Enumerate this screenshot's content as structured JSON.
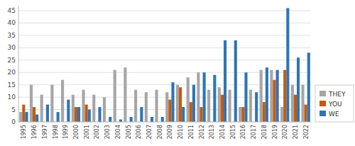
{
  "chart_data": {
    "type": "bar",
    "categories": [
      "1995",
      "1996",
      "1997",
      "1998",
      "1999",
      "2000",
      "2001",
      "2002",
      "2003",
      "2004",
      "2005",
      "2006",
      "2007",
      "2008",
      "2009",
      "2010",
      "2011",
      "2012",
      "2013",
      "2014",
      "2015",
      "2016",
      "2017",
      "2018",
      "2019",
      "2020",
      "2021",
      "2022"
    ],
    "series": [
      {
        "name": "THEY",
        "color": "#a6a6a6",
        "values": [
          4,
          15,
          11,
          15,
          17,
          11,
          13,
          11,
          10,
          21,
          22,
          13,
          12,
          13,
          12,
          15,
          18,
          20,
          13,
          14,
          13,
          6,
          13,
          21,
          21,
          6,
          15,
          15
        ]
      },
      {
        "name": "YOU",
        "color": "#c55a11",
        "values": [
          7,
          6,
          0,
          0,
          0,
          6,
          7,
          0,
          0,
          0,
          0,
          0,
          0,
          0,
          9,
          14,
          8,
          6,
          0,
          11,
          0,
          6,
          0,
          8,
          17,
          21,
          11,
          7
        ]
      },
      {
        "name": "WE",
        "color": "#2e75b6",
        "values": [
          4,
          3,
          7,
          4,
          9,
          6,
          5,
          6,
          2,
          1,
          2,
          6,
          2,
          2,
          16,
          6,
          15,
          20,
          19,
          33,
          33,
          20,
          12,
          22,
          21,
          46,
          26,
          28
        ]
      }
    ],
    "ylim": [
      0,
      47
    ],
    "yticks": [
      0,
      5,
      10,
      15,
      20,
      25,
      30,
      35,
      40,
      45
    ],
    "grid": true,
    "legend": "lower right"
  }
}
